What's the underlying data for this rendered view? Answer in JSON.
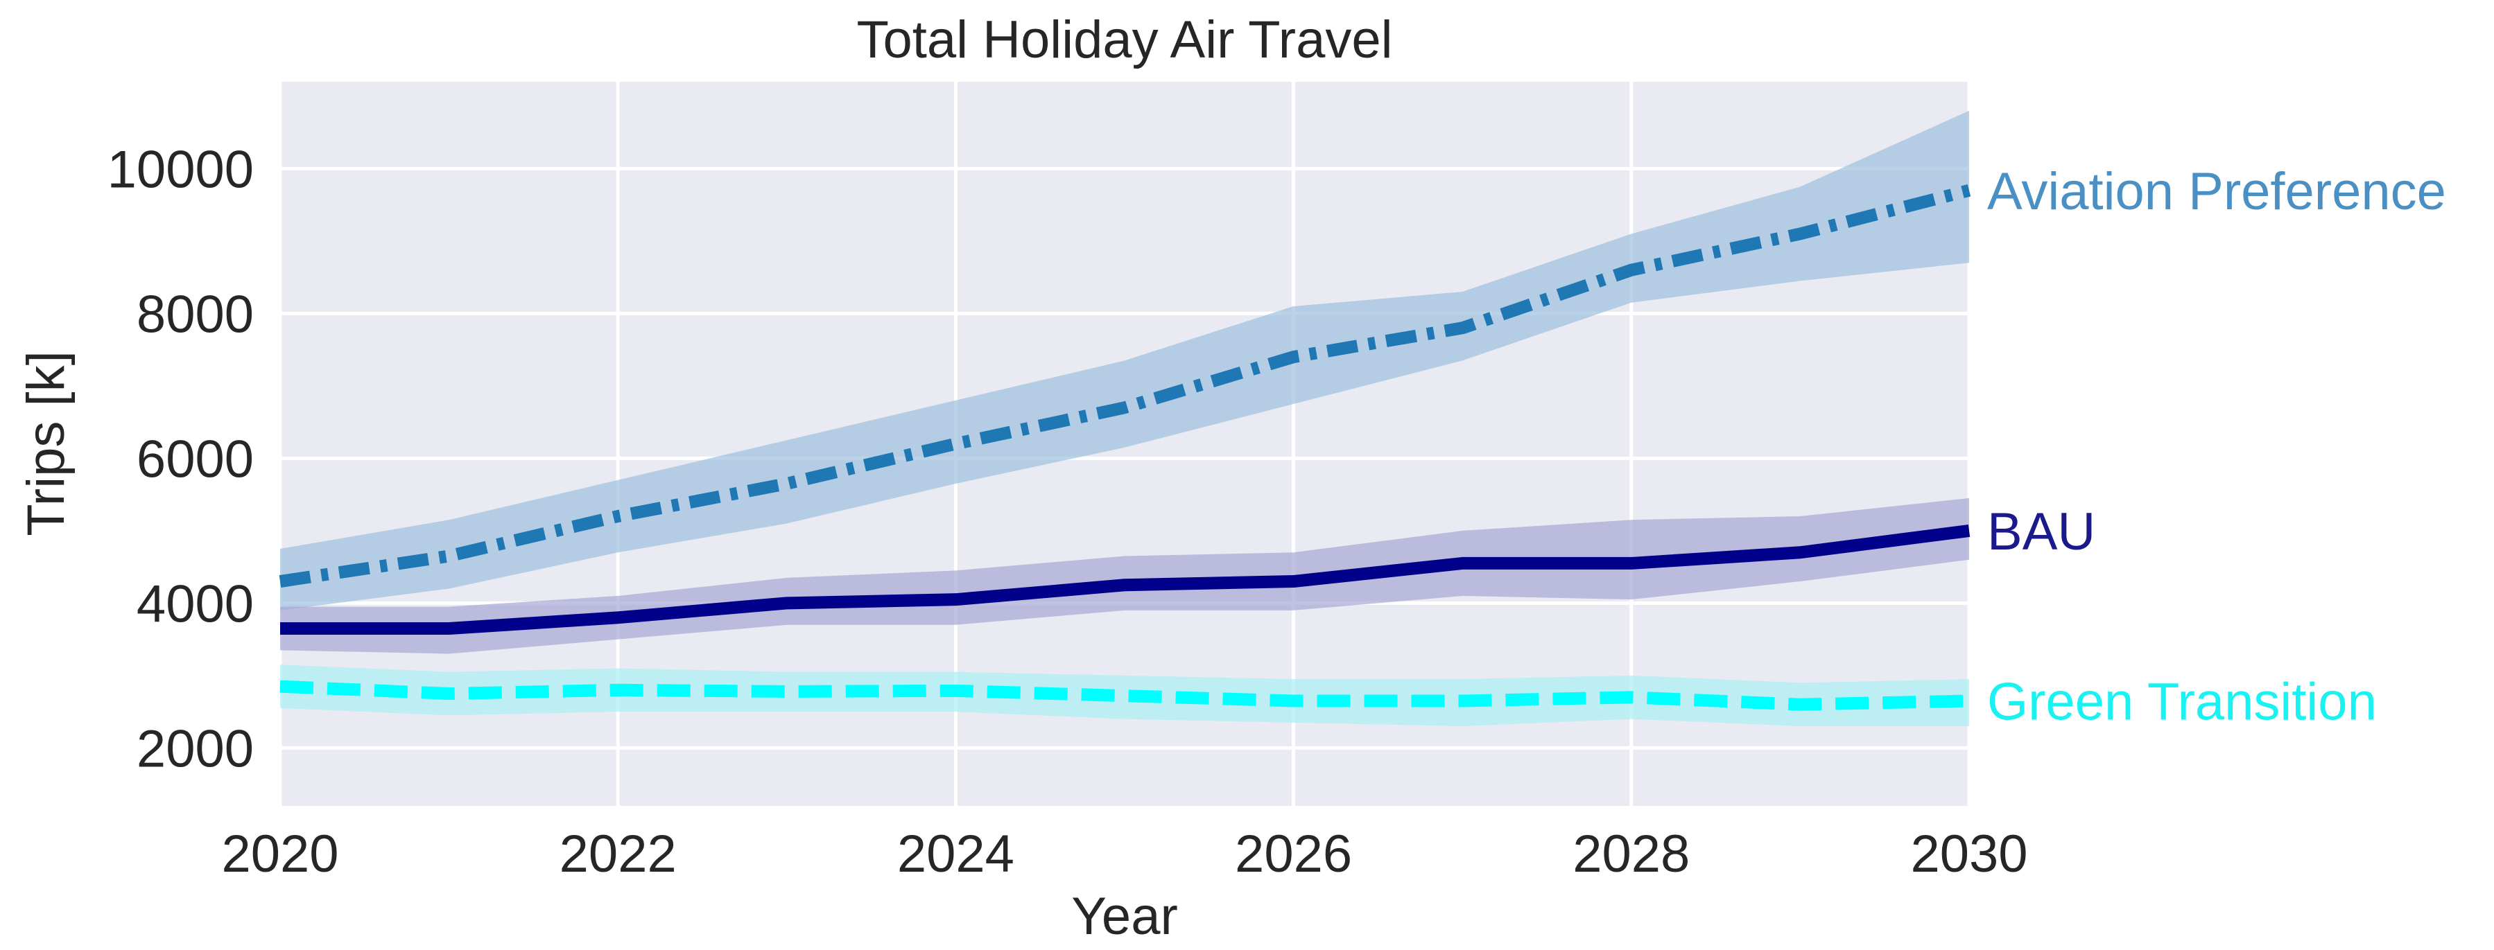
{
  "chart_data": {
    "type": "line",
    "title": "Total Holiday Air Travel",
    "xlabel": "Year",
    "ylabel": "Trips [k]",
    "xlim": [
      2020,
      2030
    ],
    "ylim": [
      1200,
      11200
    ],
    "xticks": [
      2020,
      2022,
      2024,
      2026,
      2028,
      2030
    ],
    "yticks": [
      2000,
      4000,
      6000,
      8000,
      10000
    ],
    "grid": true,
    "legend": "inline labels at right end of each line",
    "background": "#eaeaf2",
    "x": [
      2020,
      2021,
      2022,
      2023,
      2024,
      2025,
      2026,
      2027,
      2028,
      2029,
      2030
    ],
    "series": [
      {
        "name": "Aviation Preference",
        "color": "#1f77b4",
        "label_color": "#4a90c4",
        "band_color": "#9ec0de",
        "dash": "dashdot",
        "values": [
          4300,
          4650,
          5200,
          5650,
          6200,
          6700,
          7400,
          7800,
          8600,
          9100,
          9700
        ],
        "lower": [
          3900,
          4200,
          4700,
          5100,
          5650,
          6150,
          6750,
          7350,
          8150,
          8450,
          8700
        ],
        "upper": [
          4750,
          5150,
          5700,
          6250,
          6800,
          7350,
          8100,
          8300,
          9100,
          9750,
          10800
        ]
      },
      {
        "name": "BAU",
        "color": "#00008b",
        "label_color": "#1a1a8c",
        "band_color": "#a6a6d6",
        "dash": "solid",
        "values": [
          3650,
          3650,
          3800,
          4000,
          4050,
          4250,
          4300,
          4550,
          4550,
          4700,
          5000
        ],
        "lower": [
          3350,
          3300,
          3500,
          3700,
          3700,
          3900,
          3900,
          4100,
          4050,
          4300,
          4600
        ],
        "upper": [
          3950,
          3950,
          4100,
          4350,
          4450,
          4650,
          4700,
          5000,
          5150,
          5200,
          5450
        ]
      },
      {
        "name": "Green Transition",
        "color": "#00ffff",
        "label_color": "#19f2f2",
        "band_color": "#a8f0f3",
        "dash": "dashed",
        "values": [
          2850,
          2750,
          2800,
          2780,
          2790,
          2720,
          2650,
          2650,
          2700,
          2600,
          2650
        ],
        "lower": [
          2550,
          2450,
          2500,
          2500,
          2500,
          2400,
          2350,
          2300,
          2400,
          2300,
          2300
        ],
        "upper": [
          3150,
          3050,
          3100,
          3050,
          3050,
          3000,
          2950,
          2950,
          3000,
          2900,
          2950
        ]
      }
    ]
  }
}
